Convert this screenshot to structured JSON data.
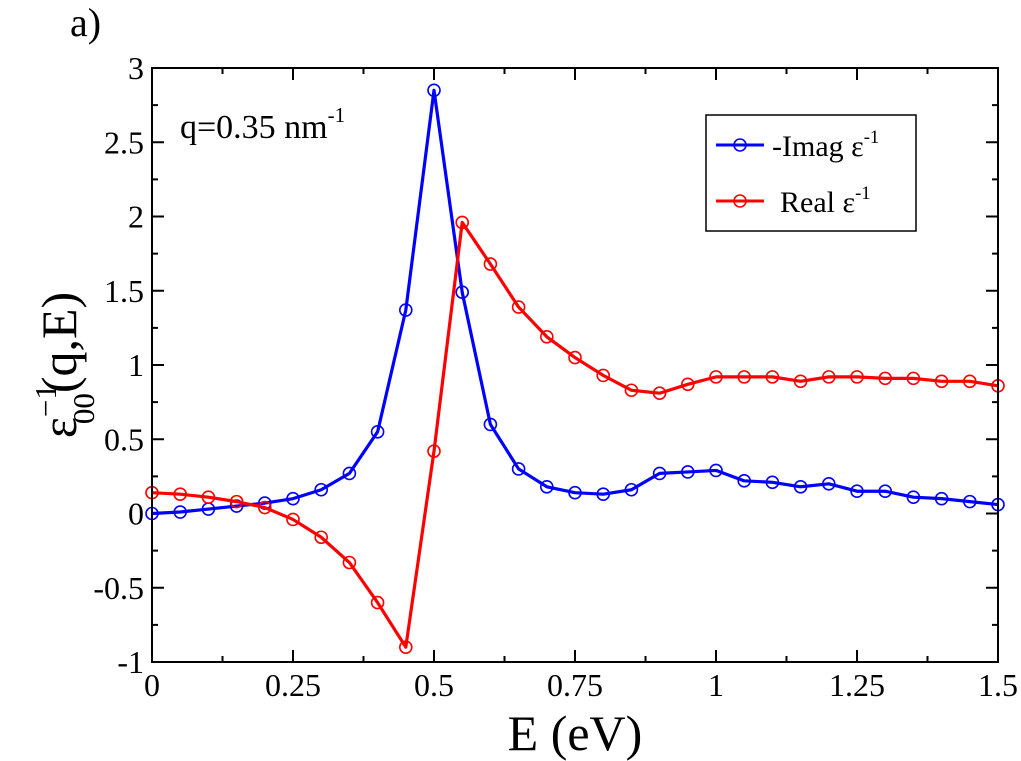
{
  "chart_data": {
    "type": "line",
    "panel_label": "a)",
    "annotation": {
      "main": "q=0.35 nm",
      "sup": "-1"
    },
    "xlabel": "E (eV)",
    "ylabel": {
      "base": "ε",
      "sup": "−1",
      "sub": "00",
      "rest": "(q,E)"
    },
    "xlim": [
      0,
      1.5
    ],
    "ylim": [
      -1,
      3
    ],
    "xticks": [
      "0",
      "0.25",
      "0.5",
      "0.75",
      "1",
      "1.25",
      "1.5"
    ],
    "xtick_values": [
      0,
      0.25,
      0.5,
      0.75,
      1,
      1.25,
      1.5
    ],
    "yticks": [
      "-1",
      "-0.5",
      "0",
      "0.5",
      "1",
      "1.5",
      "2",
      "2.5",
      "3"
    ],
    "ytick_values": [
      -1,
      -0.5,
      0,
      0.5,
      1,
      1.5,
      2,
      2.5,
      3
    ],
    "legend_position": "top-right",
    "x": [
      0,
      0.05,
      0.1,
      0.15,
      0.2,
      0.25,
      0.3,
      0.35,
      0.4,
      0.45,
      0.5,
      0.55,
      0.6,
      0.65,
      0.7,
      0.75,
      0.8,
      0.85,
      0.9,
      0.95,
      1.0,
      1.05,
      1.1,
      1.15,
      1.2,
      1.25,
      1.3,
      1.35,
      1.4,
      1.45,
      1.5
    ],
    "series": [
      {
        "name": "-Imag ε",
        "name_sup": "-1",
        "color": "#0000ff",
        "values": [
          0.0,
          0.01,
          0.03,
          0.05,
          0.07,
          0.1,
          0.16,
          0.27,
          0.55,
          1.37,
          2.85,
          1.49,
          0.6,
          0.3,
          0.18,
          0.14,
          0.13,
          0.16,
          0.27,
          0.28,
          0.29,
          0.22,
          0.21,
          0.18,
          0.2,
          0.15,
          0.15,
          0.11,
          0.1,
          0.08,
          0.06
        ]
      },
      {
        "name": "Real ε",
        "name_sup": "-1",
        "color": "#ff0000",
        "values": [
          0.14,
          0.13,
          0.11,
          0.08,
          0.04,
          -0.04,
          -0.16,
          -0.33,
          -0.6,
          -0.9,
          0.42,
          1.96,
          1.68,
          1.39,
          1.19,
          1.05,
          0.93,
          0.83,
          0.81,
          0.87,
          0.92,
          0.92,
          0.92,
          0.89,
          0.92,
          0.92,
          0.91,
          0.91,
          0.89,
          0.89,
          0.86
        ]
      }
    ]
  }
}
